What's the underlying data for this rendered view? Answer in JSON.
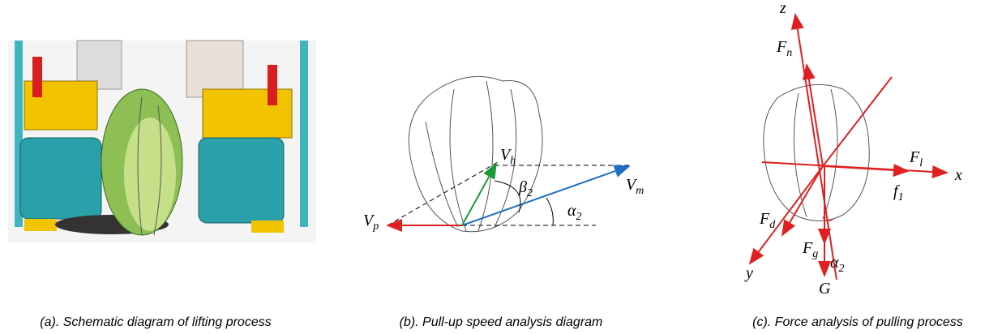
{
  "panels": [
    {
      "caption": "(a). Schematic diagram of lifting process"
    },
    {
      "caption": "(b). Pull-up speed analysis diagram",
      "labels": {
        "vh": {
          "base": "V",
          "sub": "h"
        },
        "beta": {
          "base": "β",
          "sub": "2"
        },
        "vm": {
          "base": "V",
          "sub": "m"
        },
        "vp": {
          "base": "V",
          "sub": "p"
        },
        "alpha": {
          "base": "α",
          "sub": "2"
        }
      }
    },
    {
      "caption": "(c). Force analysis of pulling process",
      "labels": {
        "z": "z",
        "fn": {
          "base": "F",
          "sub": "n"
        },
        "fl": {
          "base": "F",
          "sub": "l"
        },
        "x": "x",
        "f1": {
          "base": "f",
          "sub": "1"
        },
        "fd": {
          "base": "F",
          "sub": "d"
        },
        "fg": {
          "base": "F",
          "sub": "g"
        },
        "alpha": {
          "base": "α",
          "sub": "2"
        },
        "y": "y",
        "g": "G"
      }
    }
  ]
}
